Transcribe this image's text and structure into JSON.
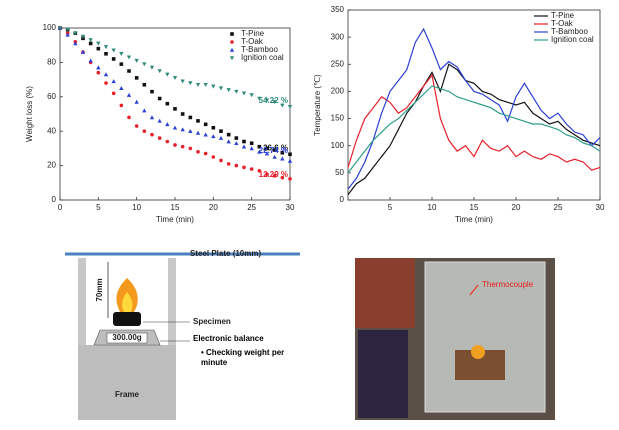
{
  "chart_data": [
    {
      "type": "scatter",
      "xlabel": "Time (min)",
      "ylabel": "Weight loss (%)",
      "x": [
        0,
        1,
        2,
        3,
        4,
        5,
        6,
        7,
        8,
        9,
        10,
        11,
        12,
        13,
        14,
        15,
        16,
        17,
        18,
        19,
        20,
        21,
        22,
        23,
        24,
        25,
        26,
        27,
        28,
        29,
        30
      ],
      "xlim": [
        0,
        30
      ],
      "xticks": [
        0,
        5,
        10,
        15,
        20,
        25,
        30
      ],
      "ylim": [
        0,
        100
      ],
      "yticks": [
        0,
        20,
        40,
        60,
        80,
        100
      ],
      "legend": "upper right",
      "series": [
        {
          "name": "T-Pine",
          "color": "#111111",
          "marker": "square",
          "values": [
            100,
            99,
            97,
            94,
            91,
            88,
            85,
            82,
            79,
            75,
            71,
            67,
            63,
            59,
            56,
            53,
            50,
            48,
            46,
            44,
            42,
            40,
            38,
            36,
            34,
            33,
            31,
            30,
            29,
            27.5,
            26.6
          ]
        },
        {
          "name": "T-Oak",
          "color": "#e8202a",
          "marker": "circle",
          "values": [
            100,
            97,
            92,
            86,
            80,
            74,
            68,
            62,
            55,
            48,
            43,
            40,
            38,
            36,
            34,
            32,
            31,
            30,
            28,
            27,
            25,
            23,
            21,
            20,
            19,
            18,
            17,
            15,
            14,
            13,
            12.3
          ]
        },
        {
          "name": "T-Bamboo",
          "color": "#2a3fd6",
          "marker": "triangle",
          "values": [
            100,
            96,
            91,
            86,
            81,
            77,
            73,
            69,
            65,
            61,
            57,
            52,
            48,
            46,
            44,
            42,
            41,
            40,
            39,
            38,
            37,
            36,
            34,
            33,
            31,
            30,
            28,
            27,
            25,
            24,
            22.7
          ]
        },
        {
          "name": "Ignition coal",
          "color": "#2e8b7a",
          "marker": "triangle-down",
          "values": [
            100,
            99,
            97,
            95,
            93,
            91,
            89,
            87,
            85,
            83,
            81,
            79,
            77,
            75,
            73,
            71,
            69,
            68,
            67,
            67,
            66,
            65,
            64,
            63,
            62,
            61,
            59,
            58,
            57,
            55,
            54.2
          ]
        }
      ],
      "annotations": [
        {
          "text": "26.6 %",
          "color": "#111111"
        },
        {
          "text": "12.29 %",
          "color": "#e8202a"
        },
        {
          "text": "22.74 %",
          "color": "#2a3fd6"
        },
        {
          "text": "54.22 %",
          "color": "#2e8b7a"
        }
      ]
    },
    {
      "type": "line",
      "xlabel": "Time (min)",
      "ylabel": "Temperature (℃)",
      "x": [
        0,
        1,
        2,
        3,
        4,
        5,
        6,
        7,
        8,
        9,
        10,
        11,
        12,
        13,
        14,
        15,
        16,
        17,
        18,
        19,
        20,
        21,
        22,
        23,
        24,
        25,
        26,
        27,
        28,
        29,
        30
      ],
      "xlim": [
        0,
        30
      ],
      "xticks": [
        5,
        10,
        15,
        20,
        25,
        30
      ],
      "ylim": [
        0,
        350
      ],
      "yticks": [
        0,
        50,
        100,
        150,
        200,
        250,
        300,
        350
      ],
      "legend": "upper right",
      "series": [
        {
          "name": "T-Pine",
          "color": "#111111",
          "values": [
            10,
            30,
            40,
            60,
            80,
            100,
            130,
            160,
            180,
            210,
            235,
            200,
            250,
            240,
            220,
            215,
            200,
            195,
            185,
            180,
            175,
            180,
            160,
            150,
            140,
            145,
            130,
            120,
            110,
            105,
            100
          ]
        },
        {
          "name": "T-Oak",
          "color": "#e8202a",
          "values": [
            60,
            110,
            150,
            170,
            190,
            180,
            160,
            170,
            190,
            210,
            230,
            150,
            110,
            90,
            100,
            80,
            110,
            95,
            90,
            100,
            80,
            90,
            80,
            75,
            85,
            80,
            70,
            75,
            70,
            55,
            60
          ]
        },
        {
          "name": "T-Bamboo",
          "color": "#2a3fd6",
          "values": [
            20,
            40,
            70,
            110,
            160,
            200,
            220,
            240,
            290,
            315,
            280,
            240,
            255,
            245,
            220,
            200,
            195,
            185,
            175,
            145,
            190,
            215,
            190,
            165,
            150,
            160,
            140,
            125,
            120,
            100,
            115
          ]
        },
        {
          "name": "Ignition coal",
          "color": "#2e9e8a",
          "values": [
            50,
            70,
            90,
            110,
            125,
            140,
            150,
            165,
            180,
            195,
            210,
            205,
            200,
            190,
            185,
            180,
            175,
            170,
            160,
            155,
            150,
            145,
            140,
            140,
            135,
            130,
            120,
            115,
            105,
            100,
            90
          ]
        }
      ]
    }
  ],
  "diagram": {
    "plate": "Steel Plate (10mm)",
    "height": "70mm",
    "specimen": "Specimen",
    "weight": "300.00g",
    "balance": "Electronic balance",
    "note": "Checking weight per minute",
    "frame": "Frame"
  },
  "photo": {
    "label": "Thermocouple"
  }
}
